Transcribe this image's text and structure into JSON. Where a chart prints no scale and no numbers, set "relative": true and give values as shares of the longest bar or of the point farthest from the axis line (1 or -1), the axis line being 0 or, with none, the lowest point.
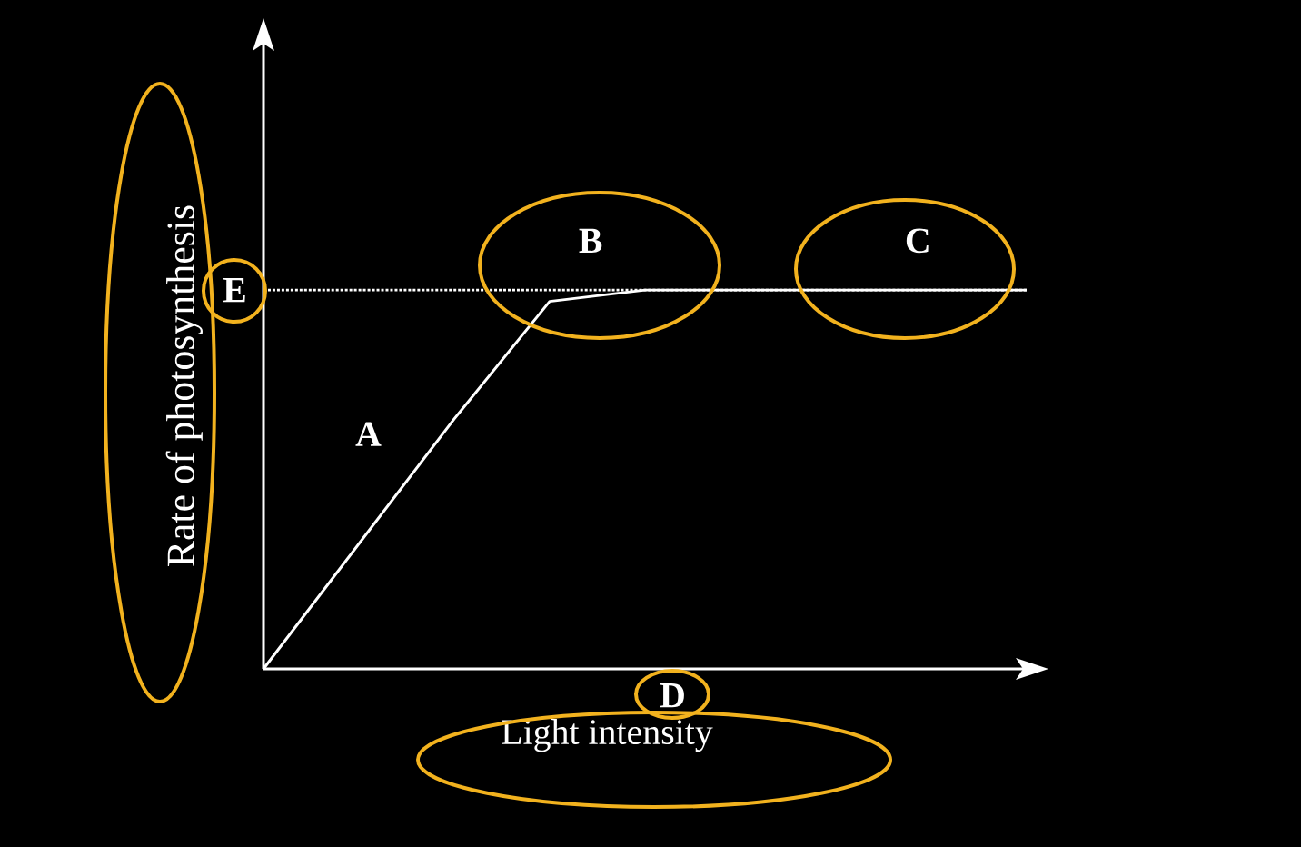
{
  "chart_data": {
    "type": "line",
    "relative": true,
    "xlabel": "Light intensity",
    "ylabel": "Rate of photosynthesis",
    "categories": [
      null,
      null,
      null,
      null,
      null,
      null,
      null,
      null,
      null
    ],
    "series": [
      {
        "color": "#ffffff",
        "values": [
          0,
          0.33,
          0.66,
          0.97,
          1,
          1,
          1,
          1,
          1
        ]
      }
    ],
    "ref_lines": [
      {
        "axis": "y",
        "value": 1,
        "color": "#ffffff",
        "line_style": "dotted"
      }
    ],
    "annotations": [
      "A",
      "B",
      "C",
      "D",
      "E"
    ],
    "marker": "none"
  }
}
